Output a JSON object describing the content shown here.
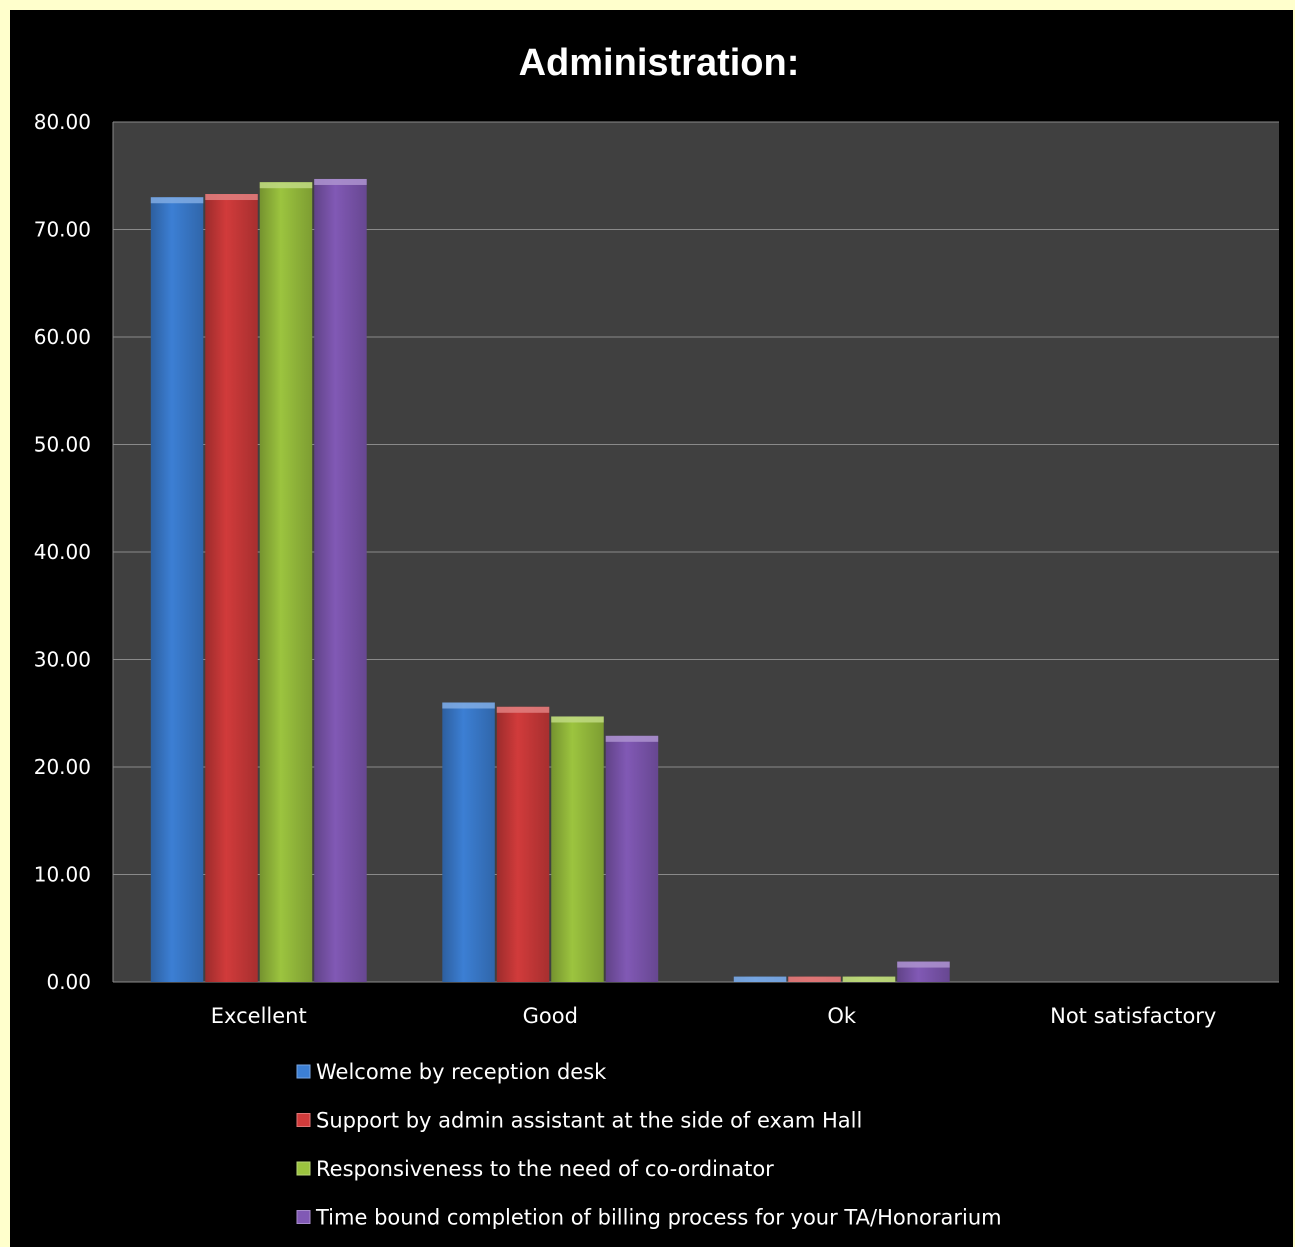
{
  "chart_data": {
    "type": "bar",
    "title": "Administration:",
    "categories": [
      "Excellent",
      "Good",
      "Ok",
      "Not satisfactory"
    ],
    "ylim": [
      0,
      80
    ],
    "yticks": [
      "0.00",
      "10.00",
      "20.00",
      "30.00",
      "40.00",
      "50.00",
      "60.00",
      "70.00",
      "80.00"
    ],
    "grid": true,
    "legend_position": "bottom",
    "background_color": "#000000",
    "plot_background_color": "#404040",
    "frame_color": "#ffffcc",
    "series": [
      {
        "name": "Welcome by reception desk",
        "color": "#3c7fd4",
        "values": [
          73.0,
          26.0,
          0.5,
          0
        ]
      },
      {
        "name": "Support by admin assistant at the side of exam Hall",
        "color": "#d13b3b",
        "values": [
          73.3,
          25.6,
          0.5,
          0
        ]
      },
      {
        "name": "Responsiveness to the need of co-ordinator",
        "color": "#9cc43f",
        "values": [
          74.4,
          24.7,
          0.5,
          0
        ]
      },
      {
        "name": "Time bound completion of billing process for your TA/Honorarium",
        "color": "#8159b5",
        "values": [
          74.7,
          22.9,
          1.9,
          0
        ]
      }
    ]
  }
}
